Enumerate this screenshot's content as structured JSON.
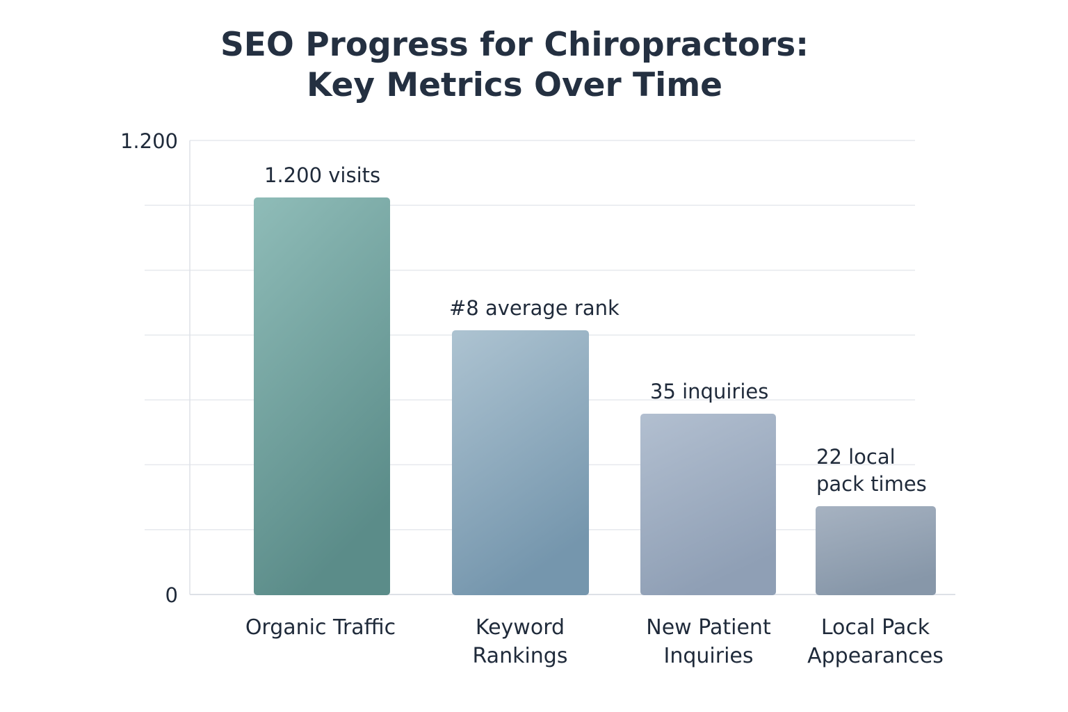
{
  "chart_data": {
    "type": "bar",
    "title_lines": [
      "SEO Progress for Chiropractors:",
      "Key Metrics Over Time"
    ],
    "categories": [
      [
        "Organic Traffic"
      ],
      [
        "Keyword",
        "Rankings"
      ],
      [
        "New Patient",
        "Inquiries"
      ],
      [
        "Local Pack",
        "Appearances"
      ]
    ],
    "values": [
      1200,
      8,
      35,
      22
    ],
    "data_labels": [
      [
        "1.200 visits"
      ],
      [
        "#8 average rank"
      ],
      [
        "35 inquiries"
      ],
      [
        "22 local",
        "pack times"
      ]
    ],
    "y_tick_labels": [
      "1.200",
      "0"
    ],
    "ylim": [
      0,
      1200
    ],
    "grid": true,
    "colors": {
      "bar_top": [
        "#8fbcb8",
        "#adc3d1",
        "#b2bfd0",
        "#a6b2c1"
      ],
      "bar_bottom": [
        "#5b8c89",
        "#7596ad",
        "#8f9fb5",
        "#8797a9"
      ],
      "grid": "#e6e9ee",
      "axis": "#dde1e7",
      "text": "#1f2a3a"
    }
  }
}
